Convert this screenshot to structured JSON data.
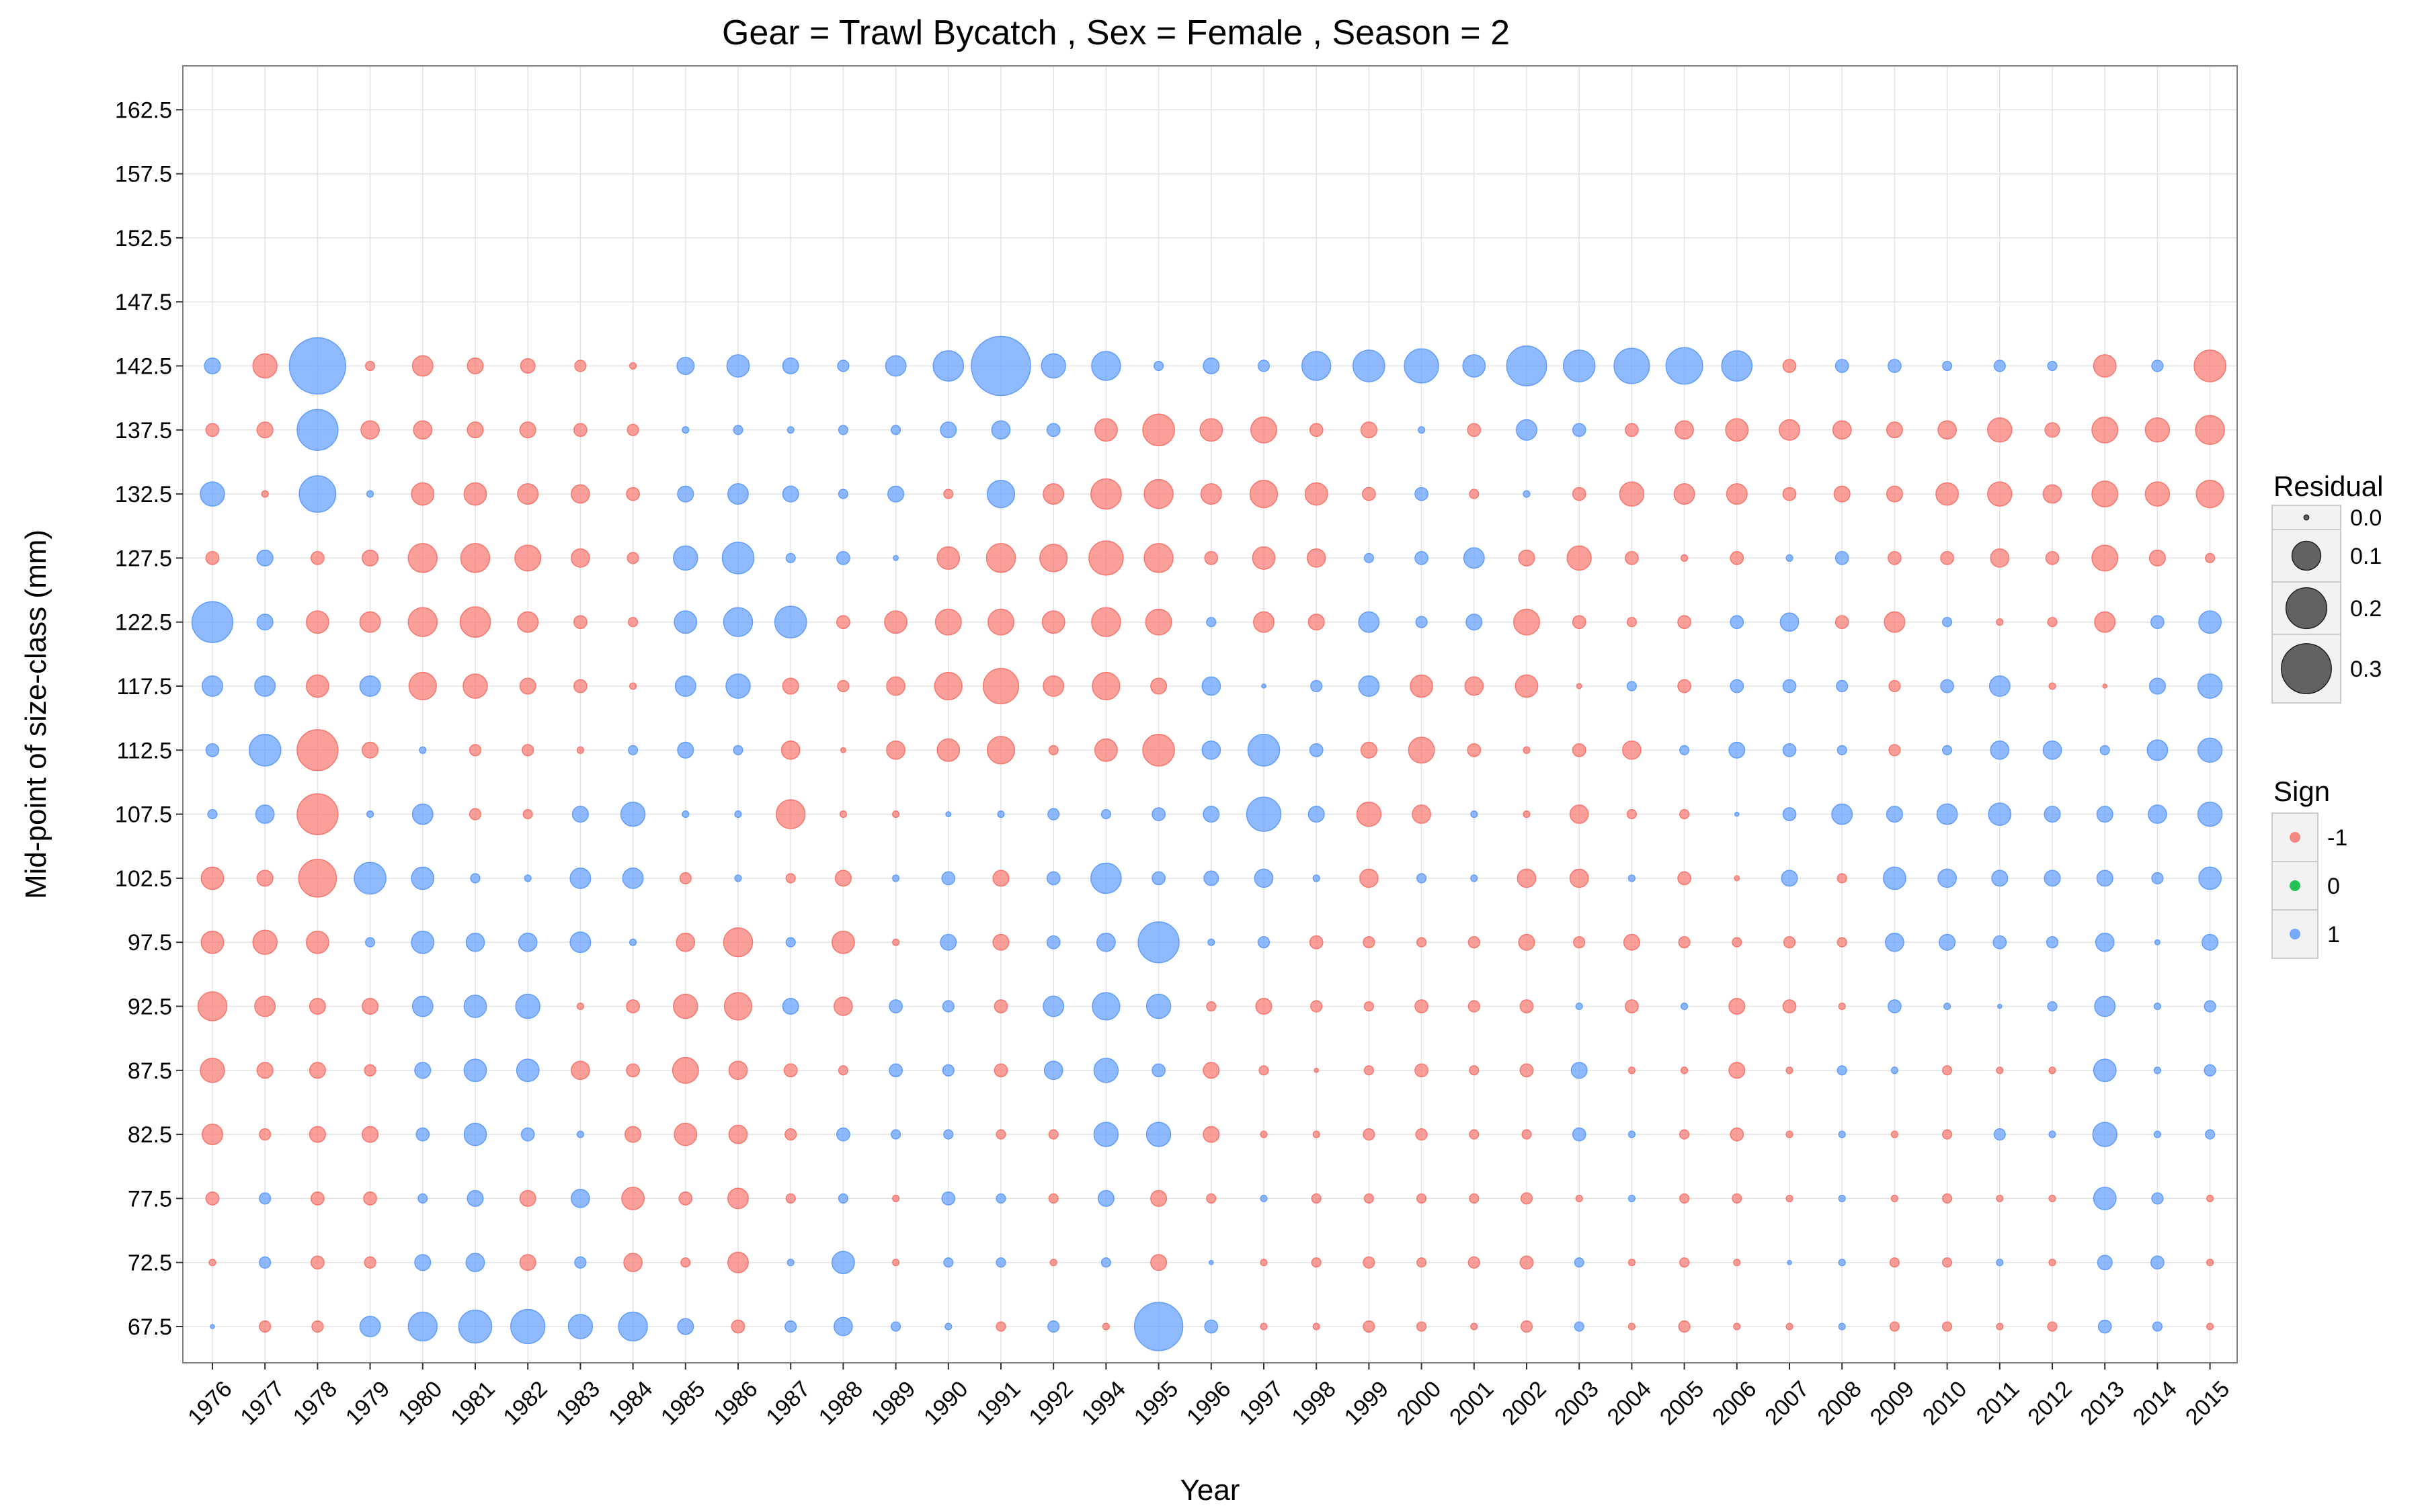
{
  "chart_data": {
    "type": "scatter",
    "title": "Gear = Trawl Bycatch , Sex = Female , Season = 2",
    "xlabel": "Year",
    "ylabel": "Mid-point of size-class (mm)",
    "years": [
      "1976",
      "1977",
      "1978",
      "1979",
      "1980",
      "1981",
      "1982",
      "1983",
      "1984",
      "1985",
      "1986",
      "1987",
      "1988",
      "1989",
      "1990",
      "1991",
      "1992",
      "1994",
      "1995",
      "1996",
      "1997",
      "1998",
      "1999",
      "2000",
      "2001",
      "2002",
      "2003",
      "2004",
      "2005",
      "2006",
      "2007",
      "2008",
      "2009",
      "2010",
      "2011",
      "2012",
      "2013",
      "2014",
      "2015"
    ],
    "size_classes": [
      67.5,
      72.5,
      77.5,
      82.5,
      87.5,
      92.5,
      97.5,
      102.5,
      107.5,
      112.5,
      117.5,
      122.5,
      127.5,
      132.5,
      137.5,
      142.5,
      147.5,
      152.5,
      157.5,
      162.5
    ],
    "y_tick_labels": [
      "67.5",
      "72.5",
      "77.5",
      "82.5",
      "87.5",
      "92.5",
      "97.5",
      "102.5",
      "107.5",
      "112.5",
      "117.5",
      "122.5",
      "127.5",
      "132.5",
      "137.5",
      "142.5",
      "147.5",
      "152.5",
      "157.5",
      "162.5"
    ],
    "grid": true,
    "colors": {
      "neg": "#F8766D",
      "zero": "#00BA38",
      "pos": "#619CFF"
    },
    "legend": {
      "position": "right",
      "size_title": "Residual",
      "size_labels": [
        "0.0",
        "0.1",
        "0.2",
        "0.3"
      ],
      "size_values": [
        0.003,
        0.1,
        0.2,
        0.3
      ],
      "sign_title": "Sign",
      "sign_labels": [
        "-1",
        "0",
        "1"
      ]
    },
    "residuals": {
      "67.5": [
        0.002,
        -0.015,
        -0.015,
        0.05,
        0.1,
        0.13,
        0.14,
        0.07,
        0.1,
        0.03,
        -0.02,
        0.015,
        0.04,
        0.01,
        0.005,
        -0.01,
        0.015,
        -0.005,
        0.28,
        0.02,
        -0.005,
        -0.005,
        -0.015,
        -0.01,
        -0.005,
        -0.015,
        0.01,
        -0.005,
        -0.015,
        -0.005,
        -0.005,
        0.005,
        -0.01,
        -0.01,
        -0.005,
        -0.01,
        0.02,
        0.01,
        -0.005
      ],
      "72.5": [
        -0.005,
        0.015,
        -0.02,
        -0.015,
        0.03,
        0.04,
        -0.03,
        0.015,
        -0.04,
        -0.01,
        -0.05,
        0.005,
        0.06,
        -0.005,
        0.01,
        0.01,
        -0.005,
        0.01,
        -0.03,
        0.002,
        -0.005,
        -0.01,
        -0.015,
        -0.01,
        -0.015,
        -0.02,
        0.01,
        -0.005,
        -0.01,
        -0.005,
        0.002,
        0.005,
        -0.01,
        -0.01,
        0.005,
        -0.005,
        0.025,
        0.02,
        -0.005
      ],
      "77.5": [
        -0.02,
        0.015,
        -0.02,
        -0.02,
        0.01,
        0.03,
        -0.03,
        0.04,
        -0.06,
        -0.02,
        -0.05,
        -0.01,
        0.01,
        -0.005,
        0.02,
        0.01,
        -0.01,
        0.03,
        -0.03,
        -0.01,
        0.005,
        -0.01,
        -0.01,
        -0.01,
        -0.01,
        -0.015,
        -0.005,
        0.005,
        -0.01,
        -0.01,
        -0.005,
        0.005,
        -0.005,
        -0.01,
        -0.005,
        -0.005,
        0.06,
        0.015,
        -0.005
      ],
      "82.5": [
        -0.05,
        -0.015,
        -0.03,
        -0.03,
        0.02,
        0.06,
        0.02,
        0.005,
        -0.03,
        -0.06,
        -0.04,
        -0.015,
        0.02,
        0.01,
        0.01,
        -0.01,
        -0.01,
        0.07,
        0.07,
        -0.03,
        -0.005,
        -0.005,
        -0.015,
        -0.015,
        -0.01,
        -0.01,
        0.02,
        0.005,
        -0.01,
        -0.02,
        -0.005,
        0.005,
        -0.005,
        -0.01,
        0.015,
        0.005,
        0.07,
        0.005,
        0.01
      ],
      "87.5": [
        -0.07,
        -0.03,
        -0.03,
        -0.015,
        0.03,
        0.06,
        0.06,
        -0.04,
        -0.02,
        -0.08,
        -0.04,
        -0.02,
        -0.01,
        0.02,
        0.015,
        -0.02,
        0.04,
        0.07,
        0.02,
        -0.03,
        -0.01,
        -0.002,
        -0.01,
        -0.02,
        -0.01,
        -0.02,
        0.03,
        -0.005,
        -0.005,
        -0.03,
        -0.005,
        0.01,
        0.005,
        -0.01,
        -0.005,
        -0.005,
        0.06,
        0.005,
        0.015
      ],
      "92.5": [
        -0.1,
        -0.05,
        -0.03,
        -0.03,
        0.05,
        0.06,
        0.07,
        -0.005,
        -0.02,
        -0.07,
        -0.09,
        0.03,
        -0.04,
        0.02,
        0.015,
        -0.02,
        0.05,
        0.09,
        0.07,
        -0.01,
        -0.03,
        -0.015,
        -0.01,
        -0.02,
        -0.015,
        -0.02,
        0.005,
        -0.02,
        0.005,
        -0.03,
        -0.02,
        -0.005,
        0.02,
        0.005,
        0.002,
        0.01,
        0.05,
        0.005,
        0.015
      ],
      "97.5": [
        -0.06,
        -0.07,
        -0.06,
        0.01,
        0.06,
        0.04,
        0.04,
        0.05,
        0.005,
        -0.04,
        -0.1,
        0.01,
        -0.06,
        -0.005,
        0.03,
        -0.03,
        0.02,
        0.04,
        0.2,
        0.005,
        0.015,
        -0.02,
        -0.015,
        -0.01,
        -0.015,
        -0.03,
        -0.015,
        -0.03,
        -0.015,
        -0.01,
        -0.015,
        -0.01,
        0.04,
        0.03,
        0.02,
        0.015,
        0.04,
        0.003,
        0.03
      ],
      "102.5": [
        -0.06,
        -0.03,
        -0.17,
        0.12,
        0.06,
        0.01,
        0.005,
        0.05,
        0.05,
        -0.015,
        0.005,
        -0.01,
        -0.03,
        0.005,
        0.02,
        -0.03,
        0.02,
        0.11,
        0.02,
        0.025,
        0.04,
        0.005,
        -0.04,
        0.01,
        0.005,
        -0.04,
        -0.04,
        0.005,
        -0.02,
        -0.003,
        0.03,
        -0.01,
        0.06,
        0.04,
        0.03,
        0.03,
        0.03,
        0.015,
        0.06
      ],
      "107.5": [
        0.01,
        0.04,
        -0.2,
        0.005,
        0.05,
        -0.015,
        -0.01,
        0.03,
        0.07,
        0.005,
        0.005,
        -0.1,
        -0.005,
        -0.005,
        0.003,
        0.005,
        0.015,
        0.01,
        0.02,
        0.03,
        0.14,
        0.03,
        -0.07,
        -0.04,
        0.005,
        -0.005,
        -0.04,
        -0.01,
        -0.01,
        0.002,
        0.02,
        0.05,
        0.03,
        0.05,
        0.06,
        0.03,
        0.03,
        0.04,
        0.07
      ],
      "112.5": [
        0.02,
        0.12,
        -0.2,
        -0.03,
        0.005,
        -0.015,
        -0.015,
        -0.005,
        0.01,
        0.03,
        0.01,
        -0.04,
        -0.003,
        -0.04,
        -0.06,
        -0.09,
        -0.01,
        -0.06,
        -0.12,
        0.04,
        0.12,
        0.02,
        -0.03,
        -0.08,
        -0.02,
        -0.005,
        -0.02,
        -0.04,
        0.01,
        0.03,
        0.02,
        0.01,
        -0.015,
        0.01,
        0.04,
        0.04,
        0.01,
        0.05,
        0.07
      ],
      "117.5": [
        0.05,
        0.05,
        -0.06,
        0.05,
        -0.09,
        -0.07,
        -0.03,
        -0.02,
        -0.005,
        0.05,
        0.07,
        -0.03,
        -0.015,
        -0.04,
        -0.09,
        -0.15,
        -0.05,
        -0.09,
        -0.03,
        0.04,
        0.002,
        0.015,
        0.05,
        -0.06,
        -0.04,
        -0.06,
        -0.003,
        0.01,
        -0.02,
        0.02,
        0.02,
        0.015,
        -0.015,
        0.02,
        0.05,
        -0.005,
        -0.002,
        0.03,
        0.07
      ],
      "122.5": [
        0.2,
        0.03,
        -0.06,
        -0.05,
        -0.1,
        -0.11,
        -0.05,
        -0.02,
        -0.01,
        0.06,
        0.1,
        0.12,
        -0.02,
        -0.06,
        -0.08,
        -0.08,
        -0.06,
        -0.1,
        -0.08,
        0.01,
        -0.05,
        -0.03,
        0.05,
        0.015,
        0.03,
        -0.08,
        -0.02,
        -0.01,
        -0.02,
        0.02,
        0.04,
        -0.02,
        -0.05,
        0.01,
        -0.005,
        -0.01,
        -0.05,
        0.02,
        0.06
      ],
      "127.5": [
        -0.02,
        0.03,
        -0.02,
        -0.03,
        -0.1,
        -0.1,
        -0.08,
        -0.04,
        -0.015,
        0.07,
        0.12,
        0.01,
        0.02,
        0.003,
        -0.06,
        -0.1,
        -0.09,
        -0.14,
        -0.1,
        -0.02,
        -0.06,
        -0.04,
        0.01,
        0.02,
        0.05,
        -0.03,
        -0.07,
        -0.02,
        -0.005,
        -0.02,
        0.005,
        0.02,
        -0.02,
        -0.02,
        -0.04,
        -0.02,
        -0.08,
        -0.03,
        -0.01
      ],
      "132.5": [
        0.07,
        -0.005,
        0.16,
        0.005,
        -0.06,
        -0.06,
        -0.05,
        -0.04,
        -0.02,
        0.03,
        0.05,
        0.03,
        0.01,
        0.03,
        -0.01,
        0.09,
        -0.05,
        -0.11,
        -0.1,
        -0.05,
        -0.09,
        -0.06,
        -0.02,
        0.02,
        -0.01,
        0.005,
        -0.02,
        -0.07,
        -0.05,
        -0.05,
        -0.02,
        -0.03,
        -0.03,
        -0.06,
        -0.07,
        -0.04,
        -0.08,
        -0.07,
        -0.09
      ],
      "137.5": [
        -0.02,
        -0.03,
        0.2,
        -0.04,
        -0.04,
        -0.03,
        -0.03,
        -0.02,
        -0.015,
        0.005,
        0.01,
        0.005,
        0.01,
        0.01,
        0.03,
        0.04,
        0.02,
        -0.06,
        -0.12,
        -0.06,
        -0.08,
        -0.02,
        -0.03,
        0.005,
        -0.02,
        0.05,
        0.02,
        -0.02,
        -0.04,
        -0.06,
        -0.05,
        -0.04,
        -0.03,
        -0.04,
        -0.07,
        -0.025,
        -0.08,
        -0.07,
        -0.1
      ],
      "142.5": [
        0.03,
        -0.07,
        0.38,
        -0.01,
        -0.05,
        -0.03,
        -0.025,
        -0.015,
        -0.005,
        0.035,
        0.06,
        0.03,
        0.015,
        0.05,
        0.11,
        0.42,
        0.07,
        0.1,
        0.01,
        0.03,
        0.015,
        0.1,
        0.12,
        0.14,
        0.06,
        0.19,
        0.12,
        0.15,
        0.16,
        0.11,
        -0.02,
        0.02,
        0.02,
        0.01,
        0.015,
        0.01,
        -0.06,
        0.015,
        -0.12
      ],
      "147.5": [],
      "152.5": [],
      "157.5": [],
      "162.5": []
    }
  }
}
